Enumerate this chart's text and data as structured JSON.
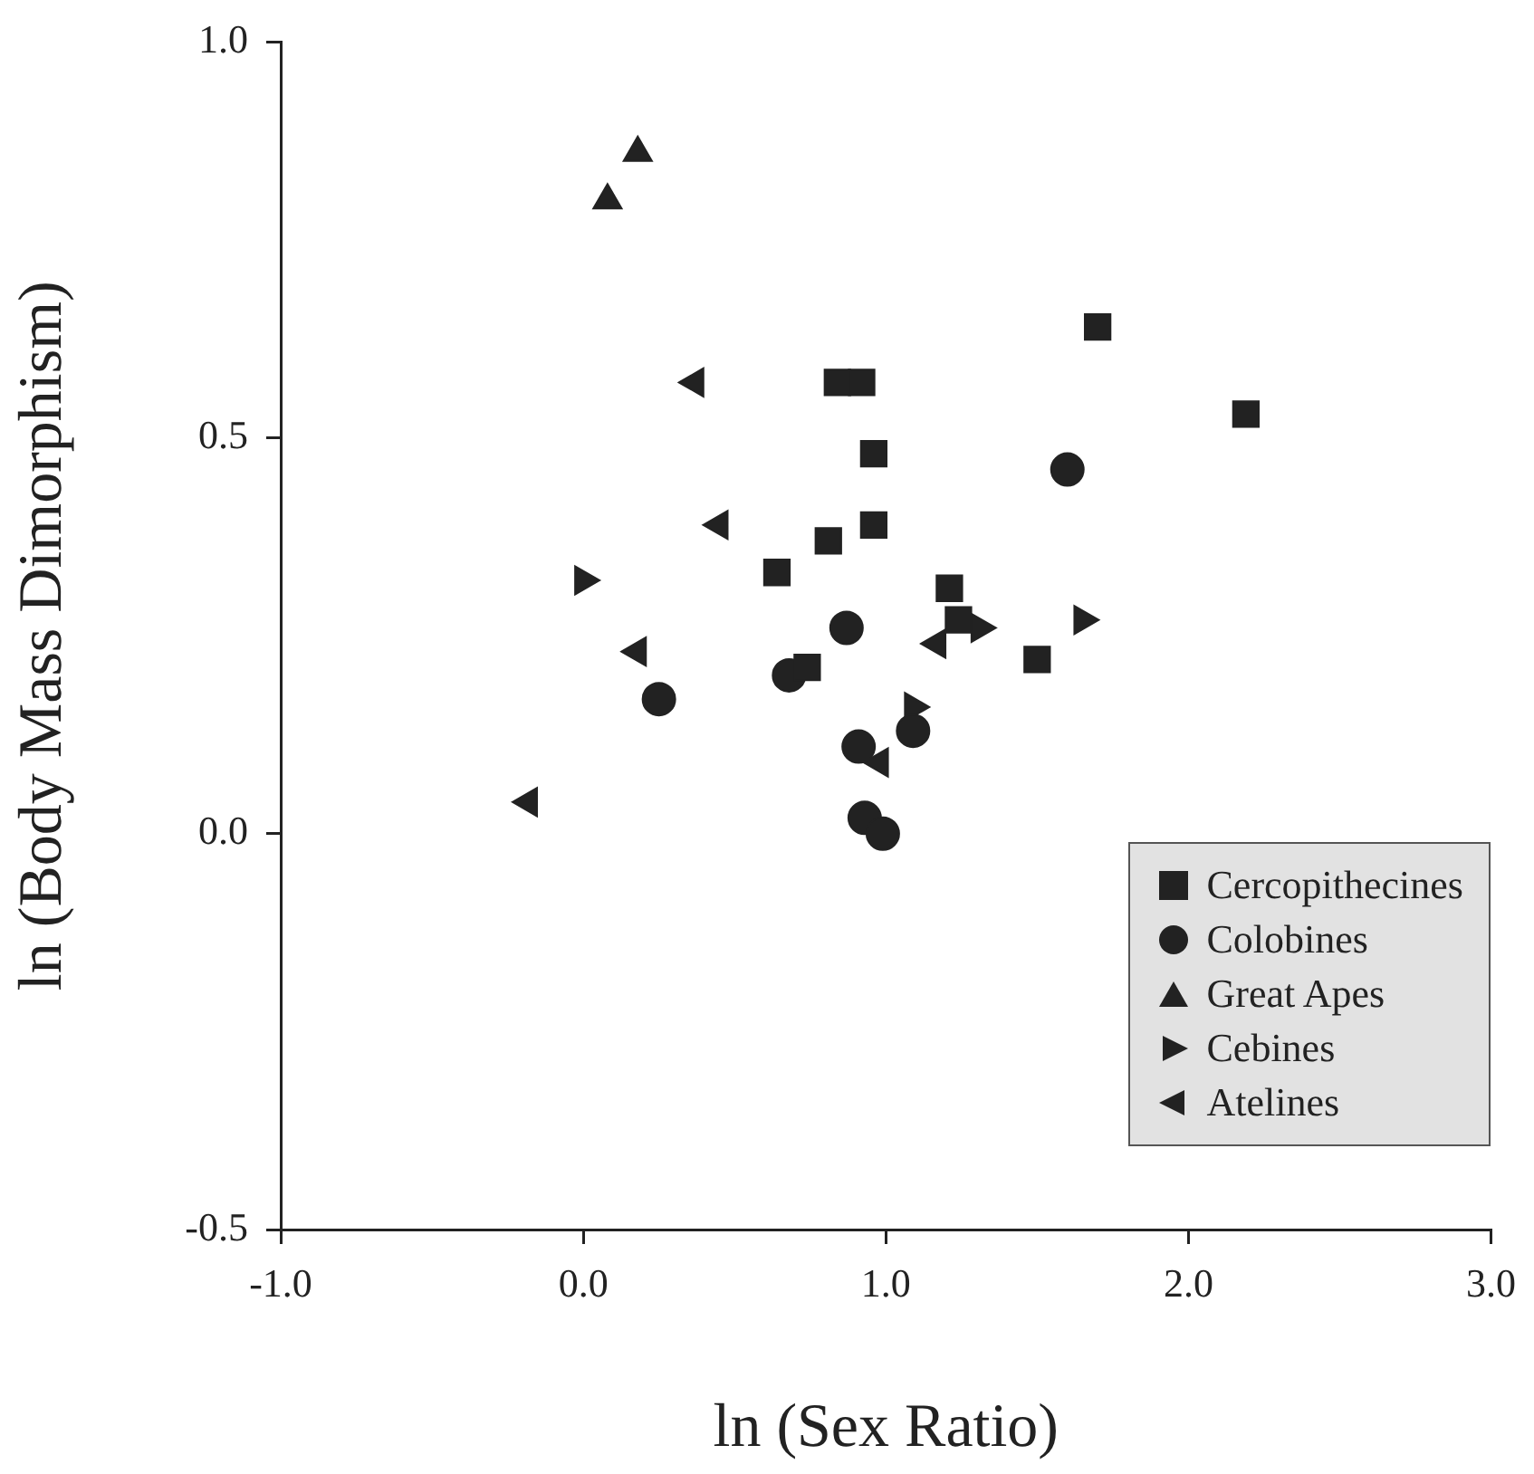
{
  "chart_data": {
    "type": "scatter",
    "xlabel": "ln (Sex Ratio)",
    "ylabel": "ln (Body Mass Dimorphism)",
    "xlim": [
      -1,
      3
    ],
    "xticks": [
      {
        "value": -1,
        "label": "-1.0"
      },
      {
        "value": 0,
        "label": "0.0"
      },
      {
        "value": 1,
        "label": "1.0"
      },
      {
        "value": 2,
        "label": "2.0"
      },
      {
        "value": 3,
        "label": "3.0"
      }
    ],
    "ylim": [
      -0.5,
      1
    ],
    "yticks": [
      {
        "value": -0.5,
        "label": "-0.5"
      },
      {
        "value": 0,
        "label": "0.0"
      },
      {
        "value": 0.5,
        "label": "0.5"
      },
      {
        "value": 1,
        "label": "1.0"
      }
    ],
    "grid": false,
    "legend": "bottom right",
    "series": [
      {
        "name": "Cercopithecines",
        "color": "#222222",
        "marker": "square",
        "x": [
          0.84,
          0.92,
          0.96,
          0.96,
          0.81,
          0.64,
          1.21,
          1.24,
          0.74,
          1.7,
          2.19,
          1.5
        ],
        "values": [
          0.57,
          0.57,
          0.48,
          0.39,
          0.37,
          0.33,
          0.31,
          0.27,
          0.21,
          0.64,
          0.53,
          0.22
        ]
      },
      {
        "name": "Colobines",
        "color": "#222222",
        "marker": "circle",
        "x": [
          0.87,
          0.68,
          0.25,
          1.09,
          0.91,
          0.93,
          0.99,
          1.6
        ],
        "values": [
          0.26,
          0.2,
          0.17,
          0.13,
          0.11,
          0.02,
          0,
          0.46
        ]
      },
      {
        "name": "Great Apes",
        "color": "#222222",
        "marker": "triangle",
        "x": [
          0.18,
          0.08
        ],
        "values": [
          0.86,
          0.8
        ]
      },
      {
        "name": "Cebines",
        "color": "#222222",
        "marker": "triangle-right",
        "x": [
          0,
          1.31,
          1.09,
          1.65
        ],
        "values": [
          0.32,
          0.26,
          0.16,
          0.27
        ]
      },
      {
        "name": "Atelines",
        "color": "#222222",
        "marker": "triangle-left",
        "x": [
          0.37,
          0.45,
          0.18,
          1.17,
          0.98,
          -0.18
        ],
        "values": [
          0.57,
          0.39,
          0.23,
          0.24,
          0.09,
          0.04
        ]
      }
    ]
  }
}
